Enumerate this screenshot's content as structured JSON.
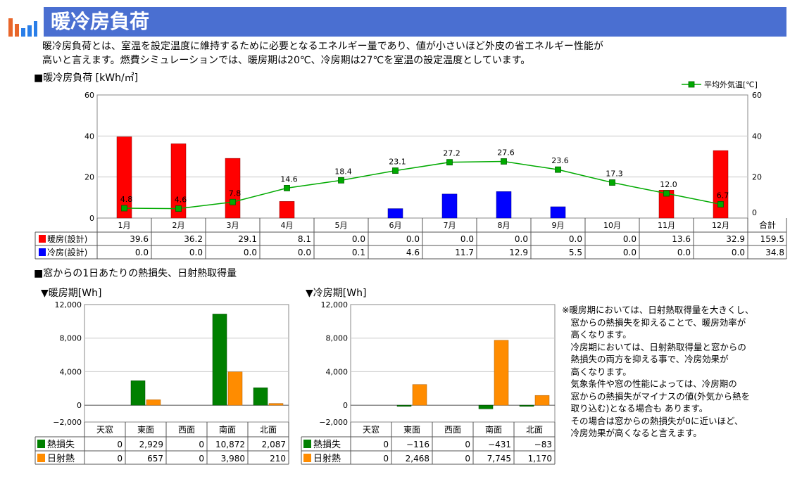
{
  "header": {
    "title": "暖冷房負荷"
  },
  "description": [
    "暖冷房負荷とは、室温を設定温度に維持するために必要となるエネルギー量であり、値が小さいほど外皮の省エネルギー性能が",
    "高いと言えます。燃費シミュレーションでは、暖房期は20℃、冷房期は27℃を室温の設定温度としています。"
  ],
  "section1": {
    "title": "■暖冷房負荷 [kWh/㎡]"
  },
  "section2": {
    "title": "■窓からの1日あたりの熱損失、日射熱取得量"
  },
  "colors": {
    "heating": "#ff0000",
    "cooling": "#0000ff",
    "temp": "#00aa00",
    "loss": "#008000",
    "solar": "#ff8c00",
    "title_bar": "#4a6fd1"
  },
  "chart_data": [
    {
      "type": "bar",
      "title": "暖冷房負荷 [kWh/㎡]",
      "categories": [
        "1月",
        "2月",
        "3月",
        "4月",
        "5月",
        "6月",
        "7月",
        "8月",
        "9月",
        "10月",
        "11月",
        "12月"
      ],
      "ylim": [
        0,
        60
      ],
      "y_ticks": [
        "0",
        "20",
        "40",
        "60"
      ],
      "series": [
        {
          "name": "暖房(設計)",
          "values": [
            39.6,
            36.2,
            29.1,
            8.1,
            0.0,
            0.0,
            0.0,
            0.0,
            0.0,
            0.0,
            13.6,
            32.9
          ],
          "total": "159.5"
        },
        {
          "name": "冷房(設計)",
          "values": [
            0.0,
            0.0,
            0.0,
            0.0,
            0.1,
            4.6,
            11.7,
            12.9,
            5.5,
            0.0,
            0.0,
            0.0
          ],
          "total": "34.8"
        }
      ],
      "total_label": "合計",
      "line_series": {
        "name": "平均外気温[℃]",
        "values": [
          4.8,
          4.6,
          7.8,
          14.6,
          18.4,
          23.1,
          27.2,
          27.6,
          23.6,
          17.3,
          12.0,
          6.7
        ],
        "y2lim": [
          0,
          60
        ],
        "y2_ticks": [
          "0",
          "20",
          "40",
          "60"
        ]
      },
      "grid": true,
      "legend_position": "top-right"
    },
    {
      "type": "bar",
      "title": "▼暖房期[Wh]",
      "categories": [
        "天窓",
        "東面",
        "西面",
        "南面",
        "北面"
      ],
      "ylim": [
        -2000,
        12000
      ],
      "y_ticks": [
        "−2,000",
        "0",
        "4,000",
        "8,000",
        "12,000"
      ],
      "series": [
        {
          "name": "熱損失",
          "values": [
            0,
            2929,
            0,
            10872,
            2087
          ],
          "labels": [
            "0",
            "2,929",
            "0",
            "10,872",
            "2,087"
          ]
        },
        {
          "name": "日射熱",
          "values": [
            0,
            657,
            0,
            3980,
            210
          ],
          "labels": [
            "0",
            "657",
            "0",
            "3,980",
            "210"
          ]
        }
      ]
    },
    {
      "type": "bar",
      "title": "▼冷房期[Wh]",
      "categories": [
        "天窓",
        "東面",
        "西面",
        "南面",
        "北面"
      ],
      "ylim": [
        -2000,
        12000
      ],
      "y_ticks": [
        "−2,000",
        "0",
        "4,000",
        "8,000",
        "12,000"
      ],
      "series": [
        {
          "name": "熱損失",
          "values": [
            0,
            -116,
            0,
            -431,
            -83
          ],
          "labels": [
            "0",
            "−116",
            "0",
            "−431",
            "−83"
          ]
        },
        {
          "name": "日射熱",
          "values": [
            0,
            2468,
            0,
            7745,
            1170
          ],
          "labels": [
            "0",
            "2,468",
            "0",
            "7,745",
            "1,170"
          ]
        }
      ]
    }
  ],
  "note": [
    "※暖房期においては、日射熱取得量を大きくし、",
    "　窓からの熱損失を抑えることで、暖房効率が",
    "　高くなります。",
    "　冷房期においては、日射熱取得量と窓からの",
    "　熱損失の両方を抑える事で、冷房効果が",
    "　高くなります。",
    "　気象条件や窓の性能によっては、冷房期の",
    "　窓からの熱損失がマイナスの値(外気から熱を",
    "　取り込む)となる場合も あります。",
    "　その場合は窓からの熱損失が0に近いほど、",
    "　冷房効果が高くなると言えます。"
  ]
}
